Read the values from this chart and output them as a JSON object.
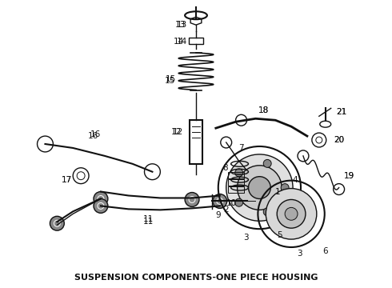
{
  "title": "SUSPENSION COMPONENTS-ONE PIECE HOUSING",
  "title_fontsize": 8,
  "title_fontweight": "bold",
  "bg_color": "#ffffff",
  "line_color": "#111111",
  "label_color": "#111111",
  "label_fontsize": 7.5,
  "fig_width": 4.9,
  "fig_height": 3.6,
  "dpi": 100
}
